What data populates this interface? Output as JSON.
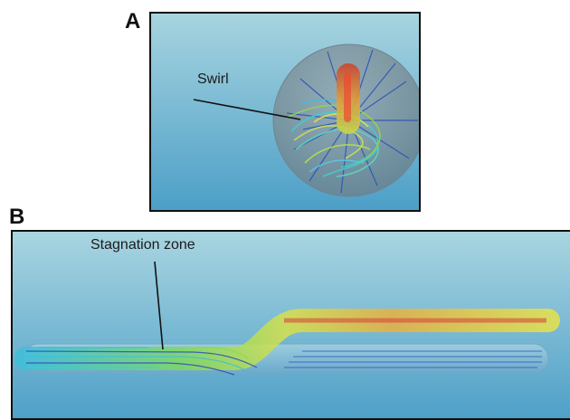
{
  "figure": {
    "panel_a": {
      "letter": "A",
      "annotation": "Swirl"
    },
    "panel_b": {
      "letter": "B",
      "annotation": "Stagnation zone"
    }
  },
  "colors": {
    "background_top": "#a6d3df",
    "background_bottom": "#4fa0c8",
    "sphere": "#8a9aa2",
    "streamline_blue": "#2a4fb8",
    "streamline_cyan": "#3fd0d0",
    "streamline_green": "#8fd84a",
    "streamline_yellow": "#e6e24a",
    "streamline_red": "#d8483a"
  }
}
